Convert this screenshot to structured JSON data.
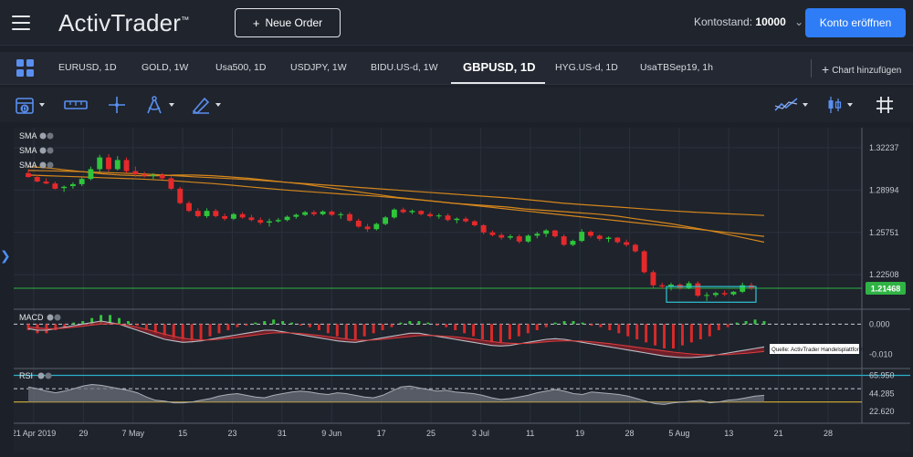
{
  "header": {
    "logo_text": "ActivTrader",
    "logo_mark": "™",
    "new_order_label": "Neue Order",
    "balance_label": "Kontostand:",
    "balance_value": "10000",
    "open_account_label": "Konto eröffnen"
  },
  "tabs": [
    {
      "label": "EURUSD, 1D",
      "active": false
    },
    {
      "label": "GOLD, 1W",
      "active": false
    },
    {
      "label": "Usa500, 1D",
      "active": false
    },
    {
      "label": "USDJPY, 1W",
      "active": false
    },
    {
      "label": "BIDU.US-d, 1W",
      "active": false
    },
    {
      "label": "GBPUSD, 1D",
      "active": true
    },
    {
      "label": "HYG.US-d, 1D",
      "active": false
    },
    {
      "label": "UsaTBSep19, 1h",
      "active": false
    }
  ],
  "add_chart_label": "Chart hinzufügen",
  "toolbar": {
    "tools": [
      "calendar-icon",
      "ruler-icon",
      "crosshair-icon",
      "compass-icon",
      "pencil-icon",
      "indicator-icon",
      "candle-type-icon",
      "grid-toggle-icon"
    ]
  },
  "chart_data": {
    "type": "candlestick",
    "price_axis": {
      "ticks": [
        "1.32237",
        "1.28994",
        "1.25751",
        "1.22508"
      ],
      "range": [
        1.2,
        1.335
      ],
      "current_price": "1.21468",
      "current_price_color": "#2fb344"
    },
    "date_axis": [
      "21 Apr 2019",
      "29",
      "7 May",
      "15",
      "23",
      "31",
      "9 Jun",
      "17",
      "25",
      "3 Jul",
      "11",
      "19",
      "28",
      "5 Aug",
      "13",
      "21",
      "28"
    ],
    "indicators_main": [
      "SMA",
      "SMA",
      "SMA"
    ],
    "macd": {
      "label": "MACD",
      "ticks": [
        "0.000",
        "-0.010"
      ],
      "range": [
        -0.014,
        0.004
      ]
    },
    "rsi": {
      "label": "RSI",
      "ticks": [
        "65.950",
        "44.285",
        "22.620"
      ],
      "range": [
        15,
        72
      ],
      "upper": 65.95,
      "middle": 50,
      "lower": 34
    },
    "source_label": "Quelle: ActivTrader Handelsplattform",
    "up_color": "#2fc53b",
    "down_color": "#e5292b",
    "sma_color": "#d4861c",
    "candles": [
      [
        1.303,
        1.306,
        1.2995,
        1.3
      ],
      [
        1.3,
        1.3018,
        1.296,
        1.2965
      ],
      [
        1.2965,
        1.299,
        1.2945,
        1.295
      ],
      [
        1.295,
        1.2965,
        1.2905,
        1.291
      ],
      [
        1.2915,
        1.2935,
        1.2885,
        1.2925
      ],
      [
        1.293,
        1.296,
        1.291,
        1.2945
      ],
      [
        1.2945,
        1.2995,
        1.293,
        1.2985
      ],
      [
        1.2985,
        1.308,
        1.2975,
        1.306
      ],
      [
        1.306,
        1.317,
        1.304,
        1.315
      ],
      [
        1.315,
        1.3175,
        1.304,
        1.306
      ],
      [
        1.306,
        1.316,
        1.305,
        1.313
      ],
      [
        1.313,
        1.315,
        1.303,
        1.3045
      ],
      [
        1.3045,
        1.308,
        1.3,
        1.302
      ],
      [
        1.302,
        1.304,
        1.2995,
        1.301
      ],
      [
        1.301,
        1.303,
        1.2985,
        1.3015
      ],
      [
        1.3015,
        1.303,
        1.298,
        1.299
      ],
      [
        1.299,
        1.3005,
        1.29,
        1.291
      ],
      [
        1.291,
        1.2925,
        1.279,
        1.28
      ],
      [
        1.28,
        1.2815,
        1.273,
        1.274
      ],
      [
        1.274,
        1.276,
        1.269,
        1.27
      ],
      [
        1.27,
        1.276,
        1.2685,
        1.274
      ],
      [
        1.274,
        1.2755,
        1.269,
        1.27
      ],
      [
        1.27,
        1.272,
        1.2665,
        1.268
      ],
      [
        1.268,
        1.2725,
        1.267,
        1.2715
      ],
      [
        1.2715,
        1.273,
        1.268,
        1.269
      ],
      [
        1.269,
        1.271,
        1.266,
        1.267
      ],
      [
        1.267,
        1.269,
        1.2635,
        1.265
      ],
      [
        1.265,
        1.268,
        1.262,
        1.266
      ],
      [
        1.266,
        1.2685,
        1.265,
        1.267
      ],
      [
        1.267,
        1.2705,
        1.266,
        1.2695
      ],
      [
        1.2695,
        1.272,
        1.268,
        1.271
      ],
      [
        1.271,
        1.274,
        1.27,
        1.273
      ],
      [
        1.273,
        1.2745,
        1.27,
        1.2715
      ],
      [
        1.2715,
        1.2745,
        1.2705,
        1.2735
      ],
      [
        1.2735,
        1.2745,
        1.27,
        1.271
      ],
      [
        1.271,
        1.273,
        1.268,
        1.2715
      ],
      [
        1.2715,
        1.273,
        1.2655,
        1.2665
      ],
      [
        1.2665,
        1.268,
        1.261,
        1.262
      ],
      [
        1.262,
        1.264,
        1.258,
        1.26
      ],
      [
        1.26,
        1.265,
        1.259,
        1.264
      ],
      [
        1.264,
        1.27,
        1.263,
        1.269
      ],
      [
        1.269,
        1.276,
        1.268,
        1.275
      ],
      [
        1.275,
        1.2765,
        1.272,
        1.273
      ],
      [
        1.273,
        1.275,
        1.2715,
        1.274
      ],
      [
        1.274,
        1.2745,
        1.2705,
        1.2715
      ],
      [
        1.2715,
        1.273,
        1.269,
        1.27
      ],
      [
        1.27,
        1.272,
        1.268,
        1.2705
      ],
      [
        1.2705,
        1.272,
        1.266,
        1.267
      ],
      [
        1.267,
        1.269,
        1.2645,
        1.268
      ],
      [
        1.268,
        1.2695,
        1.265,
        1.266
      ],
      [
        1.266,
        1.267,
        1.262,
        1.263
      ],
      [
        1.263,
        1.264,
        1.256,
        1.2575
      ],
      [
        1.2575,
        1.259,
        1.2545,
        1.2555
      ],
      [
        1.2555,
        1.257,
        1.252,
        1.2535
      ],
      [
        1.2535,
        1.256,
        1.252,
        1.2545
      ],
      [
        1.2545,
        1.256,
        1.249,
        1.2505
      ],
      [
        1.2505,
        1.256,
        1.2495,
        1.255
      ],
      [
        1.255,
        1.258,
        1.253,
        1.2565
      ],
      [
        1.2565,
        1.26,
        1.254,
        1.259
      ],
      [
        1.259,
        1.2595,
        1.2535,
        1.2545
      ],
      [
        1.2545,
        1.256,
        1.247,
        1.248
      ],
      [
        1.248,
        1.252,
        1.247,
        1.251
      ],
      [
        1.251,
        1.26,
        1.25,
        1.258
      ],
      [
        1.258,
        1.259,
        1.2535,
        1.255
      ],
      [
        1.255,
        1.256,
        1.251,
        1.2525
      ],
      [
        1.2525,
        1.2545,
        1.25,
        1.2535
      ],
      [
        1.2535,
        1.254,
        1.249,
        1.25
      ],
      [
        1.25,
        1.252,
        1.2465,
        1.248
      ],
      [
        1.248,
        1.249,
        1.242,
        1.243
      ],
      [
        1.243,
        1.244,
        1.226,
        1.227
      ],
      [
        1.227,
        1.2285,
        1.215,
        1.217
      ],
      [
        1.217,
        1.219,
        1.2145,
        1.216
      ],
      [
        1.216,
        1.219,
        1.213,
        1.2175
      ],
      [
        1.2175,
        1.2185,
        1.2135,
        1.215
      ],
      [
        1.215,
        1.22,
        1.214,
        1.2185
      ],
      [
        1.2185,
        1.22,
        1.208,
        1.209
      ],
      [
        1.209,
        1.2115,
        1.205,
        1.2095
      ],
      [
        1.2095,
        1.212,
        1.208,
        1.211
      ],
      [
        1.211,
        1.213,
        1.2085,
        1.21
      ],
      [
        1.21,
        1.2125,
        1.209,
        1.212
      ],
      [
        1.212,
        1.219,
        1.211,
        1.217
      ],
      [
        1.217,
        1.219,
        1.2135,
        1.2147
      ]
    ],
    "sma_series": [
      [
        1.308,
        1.307,
        1.3055,
        1.304,
        1.3025,
        1.3015,
        1.301,
        1.301,
        1.3015,
        1.3015,
        1.301,
        1.3,
        1.299,
        1.2975,
        1.296,
        1.2945,
        1.2925,
        1.2905,
        1.2885,
        1.2865,
        1.2845,
        1.283,
        1.2815,
        1.28,
        1.279,
        1.278,
        1.277,
        1.2755,
        1.2745,
        1.2735,
        1.2725,
        1.2715,
        1.27,
        1.268,
        1.266,
        1.264,
        1.2615,
        1.259,
        1.256,
        1.253,
        1.25
      ],
      [
        1.3015,
        1.301,
        1.3005,
        1.3,
        1.2995,
        1.299,
        1.2985,
        1.2978,
        1.297,
        1.296,
        1.295,
        1.2938,
        1.2925,
        1.2912,
        1.29,
        1.289,
        1.288,
        1.287,
        1.2862,
        1.2852,
        1.284,
        1.2828,
        1.2815,
        1.28,
        1.2785,
        1.277,
        1.2755,
        1.274,
        1.2725,
        1.271,
        1.2695,
        1.268,
        1.2665,
        1.265,
        1.2635,
        1.262,
        1.2605,
        1.259,
        1.2575,
        1.256,
        1.2545
      ],
      [
        1.305,
        1.3048,
        1.3045,
        1.304,
        1.3035,
        1.303,
        1.3025,
        1.3018,
        1.301,
        1.3002,
        1.2995,
        1.2988,
        1.298,
        1.297,
        1.296,
        1.295,
        1.294,
        1.293,
        1.292,
        1.291,
        1.29,
        1.289,
        1.288,
        1.287,
        1.286,
        1.285,
        1.284,
        1.2828,
        1.2815,
        1.28,
        1.279,
        1.278,
        1.277,
        1.276,
        1.275,
        1.274,
        1.2732,
        1.2725,
        1.2718,
        1.2712,
        1.2705
      ]
    ],
    "macd_histogram": [
      -0.002,
      -0.003,
      -0.003,
      -0.002,
      -0.001,
      0.0005,
      0.001,
      0.002,
      0.003,
      0.003,
      0.002,
      0.001,
      -0.0005,
      -0.002,
      -0.003,
      -0.004,
      -0.005,
      -0.006,
      -0.006,
      -0.005,
      -0.004,
      -0.003,
      -0.002,
      -0.001,
      -0.0005,
      0.0005,
      0.001,
      0.0015,
      0.001,
      0.0005,
      -0.0005,
      -0.001,
      -0.002,
      -0.003,
      -0.004,
      -0.005,
      -0.005,
      -0.004,
      -0.003,
      -0.002,
      -0.001,
      0.0005,
      0.001,
      0.001,
      0.0005,
      -0.0005,
      -0.001,
      -0.002,
      -0.003,
      -0.004,
      -0.005,
      -0.006,
      -0.006,
      -0.005,
      -0.004,
      -0.003,
      -0.002,
      -0.001,
      0.0005,
      0.001,
      0.001,
      0.0005,
      -0.0005,
      -0.001,
      -0.002,
      -0.003,
      -0.004,
      -0.005,
      -0.006,
      -0.007,
      -0.008,
      -0.008,
      -0.007,
      -0.006,
      -0.005,
      -0.004,
      -0.002,
      -0.001,
      0.0005,
      0.001,
      0.0015,
      0.001
    ],
    "macd_line": [
      -0.0015,
      -0.002,
      -0.002,
      -0.0015,
      -0.001,
      -0.0005,
      0.0,
      0.0005,
      0.001,
      0.0005,
      0.0,
      -0.001,
      -0.002,
      -0.003,
      -0.004,
      -0.005,
      -0.0055,
      -0.006,
      -0.0058,
      -0.0055,
      -0.005,
      -0.0045,
      -0.004,
      -0.0035,
      -0.003,
      -0.0025,
      -0.002,
      -0.002,
      -0.0025,
      -0.003,
      -0.0035,
      -0.004,
      -0.0045,
      -0.005,
      -0.0055,
      -0.0058,
      -0.006,
      -0.0055,
      -0.005,
      -0.0045,
      -0.004,
      -0.0035,
      -0.003,
      -0.003,
      -0.0035,
      -0.004,
      -0.0045,
      -0.005,
      -0.0055,
      -0.006,
      -0.0065,
      -0.007,
      -0.0072,
      -0.007,
      -0.0065,
      -0.006,
      -0.0055,
      -0.005,
      -0.0048,
      -0.005,
      -0.0055,
      -0.006,
      -0.0065,
      -0.007,
      -0.0075,
      -0.008,
      -0.0085,
      -0.009,
      -0.0095,
      -0.01,
      -0.0105,
      -0.0108,
      -0.011,
      -0.011,
      -0.0108,
      -0.0105,
      -0.01,
      -0.0095,
      -0.009,
      -0.0085,
      -0.008,
      -0.0075
    ],
    "signal_line": [
      -0.001,
      -0.0012,
      -0.0015,
      -0.0015,
      -0.0013,
      -0.001,
      -0.0007,
      -0.0003,
      0.0,
      0.0001,
      0.0,
      -0.0004,
      -0.001,
      -0.0017,
      -0.0025,
      -0.0033,
      -0.004,
      -0.0046,
      -0.005,
      -0.0052,
      -0.0052,
      -0.005,
      -0.0047,
      -0.0044,
      -0.004,
      -0.0036,
      -0.0032,
      -0.0029,
      -0.0028,
      -0.0029,
      -0.0031,
      -0.0034,
      -0.0037,
      -0.0041,
      -0.0045,
      -0.0049,
      -0.0052,
      -0.0053,
      -0.0052,
      -0.005,
      -0.0047,
      -0.0044,
      -0.0041,
      -0.0038,
      -0.0037,
      -0.0038,
      -0.004,
      -0.0042,
      -0.0045,
      -0.0049,
      -0.0053,
      -0.0057,
      -0.0061,
      -0.0063,
      -0.0064,
      -0.0063,
      -0.0061,
      -0.0058,
      -0.0056,
      -0.0055,
      -0.0055,
      -0.0056,
      -0.0058,
      -0.0061,
      -0.0064,
      -0.0068,
      -0.0072,
      -0.0076,
      -0.008,
      -0.0084,
      -0.0088,
      -0.0092,
      -0.0095,
      -0.0098,
      -0.01,
      -0.0101,
      -0.0101,
      -0.01,
      -0.0098,
      -0.0096,
      -0.0093,
      -0.009
    ],
    "rsi_values": [
      52,
      50,
      47,
      45,
      47,
      50,
      53,
      55,
      54,
      52,
      50,
      48,
      45,
      40,
      36,
      35,
      33,
      33,
      34,
      36,
      38,
      41,
      43,
      44,
      42,
      40,
      39,
      42,
      44,
      46,
      47,
      46,
      44,
      43,
      45,
      44,
      42,
      40,
      39,
      42,
      47,
      52,
      53,
      51,
      49,
      47,
      48,
      46,
      45,
      44,
      42,
      39,
      37,
      38,
      40,
      42,
      45,
      47,
      49,
      47,
      44,
      43,
      46,
      45,
      44,
      43,
      41,
      38,
      35,
      32,
      31,
      33,
      34,
      35,
      36,
      33,
      34,
      36,
      37,
      39,
      41,
      42
    ]
  }
}
